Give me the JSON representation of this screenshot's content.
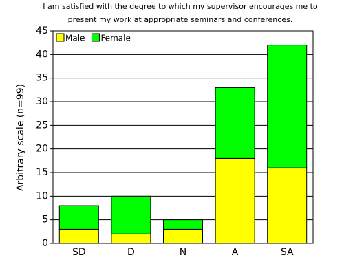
{
  "chart_data": {
    "type": "stacked-bar",
    "title": [
      "I am satisfied with the degree to which my supervisor encourages me to",
      "present my work at appropriate seminars and conferences."
    ],
    "y_label": "Arbitrary scale (n=99)",
    "categories": [
      "SD",
      "D",
      "N",
      "A",
      "SA"
    ],
    "series": [
      {
        "name": "Male",
        "color": "#ffff00",
        "values": [
          3,
          2,
          3,
          18,
          16
        ]
      },
      {
        "name": "Female",
        "color": "#00ff00",
        "values": [
          5,
          8,
          2,
          15,
          26
        ]
      }
    ],
    "ylim": [
      0,
      45
    ],
    "yticks": [
      0,
      5,
      10,
      15,
      20,
      25,
      30,
      35,
      40,
      45
    ],
    "grid": true,
    "legend": "top-left"
  }
}
